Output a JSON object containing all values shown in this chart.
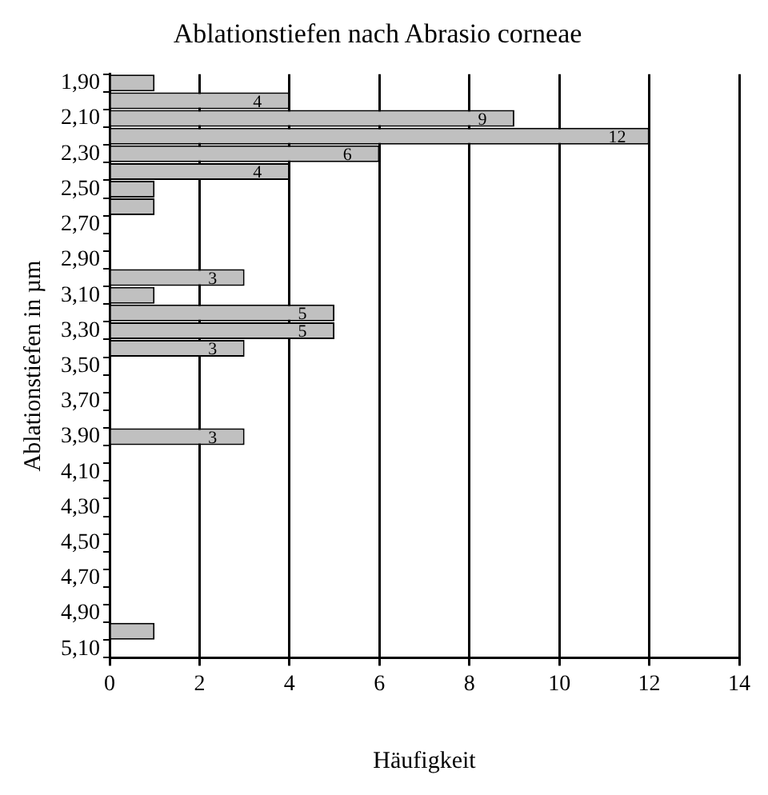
{
  "chart_data": {
    "type": "bar",
    "orientation": "horizontal",
    "title": "Ablationstiefen nach Abrasio corneae",
    "xlabel": "Häufigkeit",
    "ylabel": "Ablationstiefen in µm",
    "categories": [
      "1,90",
      null,
      "2,10",
      null,
      "2,30",
      null,
      "2,50",
      null,
      "2,70",
      null,
      "2,90",
      null,
      "3,10",
      null,
      "3,30",
      null,
      "3,50",
      null,
      "3,70",
      null,
      "3,90",
      null,
      "4,10",
      null,
      "4,30",
      null,
      "4,50",
      null,
      "4,70",
      null,
      "4,90",
      null,
      "5,10"
    ],
    "values": [
      1,
      4,
      9,
      12,
      6,
      4,
      1,
      1,
      0,
      0,
      0,
      3,
      1,
      5,
      5,
      3,
      0,
      0,
      0,
      0,
      3,
      0,
      0,
      0,
      0,
      0,
      0,
      0,
      0,
      0,
      0,
      1,
      0
    ],
    "value_labels": [
      null,
      "4",
      "9",
      "12",
      "6",
      "4",
      null,
      null,
      null,
      null,
      null,
      "3",
      null,
      "5",
      "5",
      "3",
      null,
      null,
      null,
      null,
      "3",
      null,
      null,
      null,
      null,
      null,
      null,
      null,
      null,
      null,
      null,
      null,
      null
    ],
    "color": "#c0c0c0",
    "xlim": [
      0,
      14
    ],
    "xticks": [
      0,
      2,
      4,
      6,
      8,
      10,
      12,
      14
    ],
    "grid": "x",
    "legend": false
  }
}
